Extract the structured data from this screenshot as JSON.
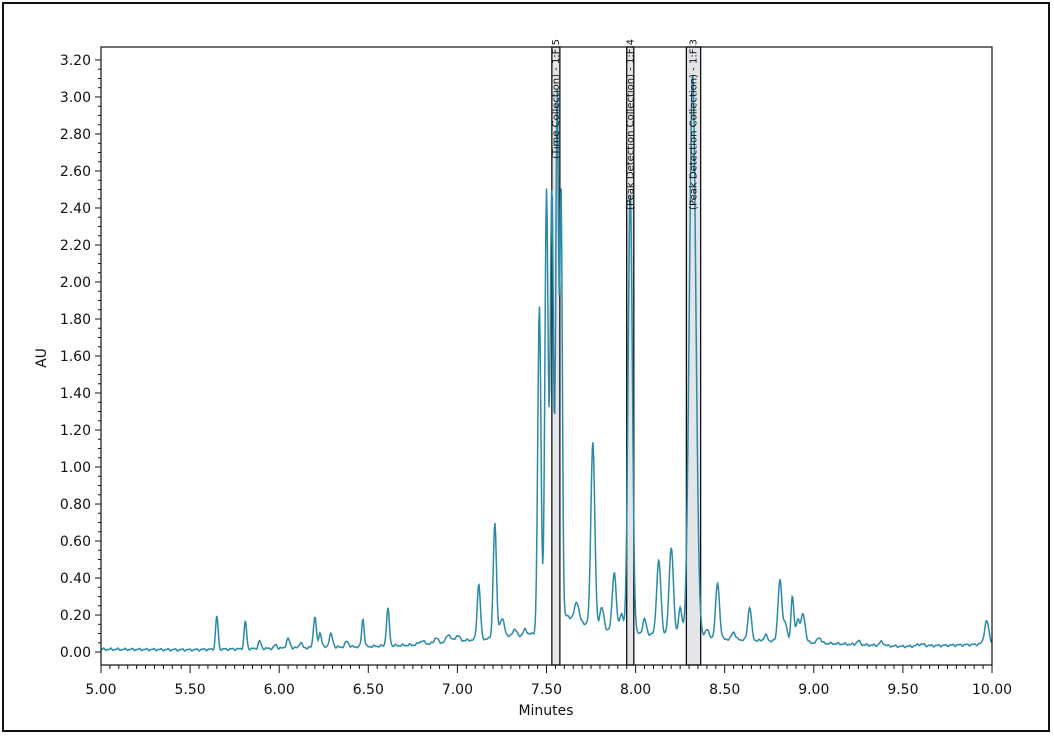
{
  "chart_data": {
    "type": "line",
    "title": "",
    "xlabel": "Minutes",
    "ylabel": "AU",
    "xlim": [
      5.0,
      10.0
    ],
    "ylim": [
      -0.07,
      3.27
    ],
    "grid": false,
    "colors": {
      "trace": "#2a8aa8",
      "band_fill": "#e4e5e9",
      "band_stroke": "#111111"
    },
    "x_ticks": [
      5.0,
      5.5,
      6.0,
      6.5,
      7.0,
      7.5,
      8.0,
      8.5,
      9.0,
      9.5,
      10.0
    ],
    "x_tick_labels": [
      "5.00",
      "5.50",
      "6.00",
      "6.50",
      "7.00",
      "7.50",
      "8.00",
      "8.50",
      "9.00",
      "9.50",
      "10.00"
    ],
    "y_ticks": [
      0.0,
      0.2,
      0.4,
      0.6,
      0.8,
      1.0,
      1.2,
      1.4,
      1.6,
      1.8,
      2.0,
      2.2,
      2.4,
      2.6,
      2.8,
      3.0,
      3.2
    ],
    "y_tick_labels": [
      "0.00",
      "0.20",
      "0.40",
      "0.60",
      "0.80",
      "1.00",
      "1.20",
      "1.40",
      "1.60",
      "1.80",
      "2.00",
      "2.20",
      "2.40",
      "2.60",
      "2.80",
      "3.00",
      "3.20"
    ],
    "fractions": [
      {
        "label": "(Time Collection) - 1:F,5",
        "start": 7.53,
        "end": 7.575
      },
      {
        "label": "(Peak Detection Collection) - 1:F,4",
        "start": 7.95,
        "end": 7.99
      },
      {
        "label": "(Peak Detection Collection) - 1:F,3",
        "start": 8.285,
        "end": 8.365
      }
    ],
    "series": [
      {
        "baseline": [
          [
            5.0,
            0.015
          ],
          [
            5.5,
            0.012
          ],
          [
            6.0,
            0.02
          ],
          [
            6.5,
            0.03
          ],
          [
            6.8,
            0.04
          ],
          [
            7.0,
            0.06
          ],
          [
            7.3,
            0.08
          ],
          [
            7.43,
            0.1
          ],
          [
            7.6,
            0.2
          ],
          [
            7.8,
            0.12
          ],
          [
            8.0,
            0.1
          ],
          [
            8.5,
            0.07
          ],
          [
            9.0,
            0.05
          ],
          [
            9.5,
            0.03
          ],
          [
            9.9,
            0.04
          ],
          [
            10.0,
            0.05
          ]
        ],
        "peaks": [
          [
            5.65,
            0.18,
            0.007
          ],
          [
            5.81,
            0.15,
            0.007
          ],
          [
            5.89,
            0.04,
            0.008
          ],
          [
            5.98,
            0.02,
            0.008
          ],
          [
            6.05,
            0.05,
            0.01
          ],
          [
            6.12,
            0.03,
            0.008
          ],
          [
            6.2,
            0.17,
            0.008
          ],
          [
            6.23,
            0.08,
            0.008
          ],
          [
            6.29,
            0.07,
            0.01
          ],
          [
            6.38,
            0.03,
            0.01
          ],
          [
            6.47,
            0.15,
            0.007
          ],
          [
            6.61,
            0.2,
            0.008
          ],
          [
            6.8,
            0.02,
            0.015
          ],
          [
            6.88,
            0.03,
            0.01
          ],
          [
            6.95,
            0.04,
            0.012
          ],
          [
            7.0,
            0.03,
            0.012
          ],
          [
            7.12,
            0.3,
            0.009
          ],
          [
            7.21,
            0.62,
            0.009
          ],
          [
            7.25,
            0.1,
            0.015
          ],
          [
            7.32,
            0.04,
            0.012
          ],
          [
            7.38,
            0.03,
            0.01
          ],
          [
            7.46,
            1.75,
            0.009
          ],
          [
            7.5,
            2.35,
            0.009
          ],
          [
            7.53,
            2.35,
            0.009
          ],
          [
            7.56,
            2.85,
            0.008
          ],
          [
            7.582,
            2.25,
            0.007
          ],
          [
            7.67,
            0.1,
            0.012
          ],
          [
            7.76,
            1.0,
            0.011
          ],
          [
            7.81,
            0.12,
            0.012
          ],
          [
            7.88,
            0.32,
            0.011
          ],
          [
            7.92,
            0.1,
            0.01
          ],
          [
            7.97,
            2.38,
            0.012
          ],
          [
            8.05,
            0.08,
            0.01
          ],
          [
            8.13,
            0.4,
            0.012
          ],
          [
            8.2,
            0.48,
            0.012
          ],
          [
            8.25,
            0.15,
            0.01
          ],
          [
            8.32,
            3.05,
            0.018
          ],
          [
            8.4,
            0.05,
            0.01
          ],
          [
            8.46,
            0.3,
            0.011
          ],
          [
            8.55,
            0.04,
            0.01
          ],
          [
            8.64,
            0.18,
            0.01
          ],
          [
            8.73,
            0.03,
            0.01
          ],
          [
            8.81,
            0.33,
            0.011
          ],
          [
            8.84,
            0.1,
            0.01
          ],
          [
            8.88,
            0.25,
            0.008
          ],
          [
            8.91,
            0.12,
            0.01
          ],
          [
            8.94,
            0.15,
            0.012
          ],
          [
            9.03,
            0.03,
            0.01
          ],
          [
            9.25,
            0.02,
            0.01
          ],
          [
            9.38,
            0.02,
            0.012
          ],
          [
            9.6,
            0.01,
            0.02
          ],
          [
            9.97,
            0.12,
            0.012
          ]
        ]
      }
    ]
  }
}
